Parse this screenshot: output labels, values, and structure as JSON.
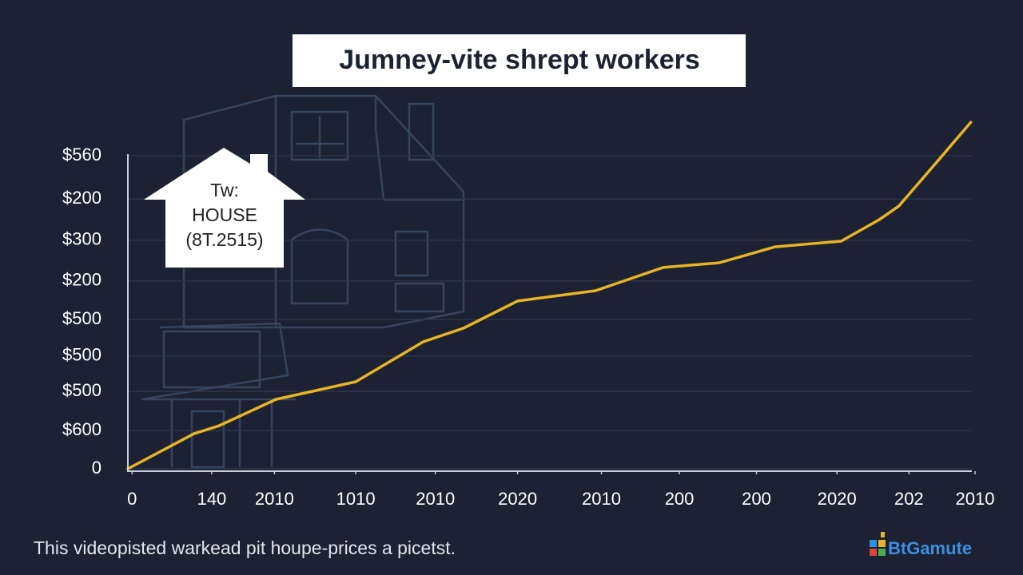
{
  "chart_data": {
    "type": "line",
    "title": "Jumney-vite shrept workers",
    "xlim": [
      0,
      100
    ],
    "ylim": [
      0,
      100
    ],
    "xticks": [
      {
        "value": 0.5,
        "label": "0"
      },
      {
        "value": 9.9,
        "label": "140"
      },
      {
        "value": 17.3,
        "label": "2010"
      },
      {
        "value": 26.9,
        "label": "1010"
      },
      {
        "value": 36.3,
        "label": "2010"
      },
      {
        "value": 46.0,
        "label": "2020"
      },
      {
        "value": 55.9,
        "label": "2010"
      },
      {
        "value": 65.1,
        "label": "200"
      },
      {
        "value": 74.2,
        "label": "200"
      },
      {
        "value": 83.7,
        "label": "2020"
      },
      {
        "value": 92.2,
        "label": "202"
      },
      {
        "value": 100,
        "label": "2010"
      }
    ],
    "yticks": [
      {
        "value": 100,
        "label": "$560"
      },
      {
        "value": 86.2,
        "label": "$200"
      },
      {
        "value": 73,
        "label": "$300"
      },
      {
        "value": 60,
        "label": "$200"
      },
      {
        "value": 47.7,
        "label": "$500"
      },
      {
        "value": 36,
        "label": "$500"
      },
      {
        "value": 24.7,
        "label": "$500"
      },
      {
        "value": 12.2,
        "label": "$600"
      },
      0
    ],
    "grid": true,
    "series": [
      {
        "color": "#e8b426",
        "x": [
          0,
          7.8,
          10.8,
          17.5,
          26.9,
          34.9,
          39.6,
          46.0,
          55.2,
          63.2,
          69.8,
          76.4,
          84.2,
          88.7,
          91.0,
          95.3,
          99.5
        ],
        "values": [
          0,
          11.2,
          13.8,
          22.2,
          27.8,
          40.6,
          44.9,
          53.6,
          56.9,
          64.3,
          65.8,
          70.9,
          72.7,
          79.6,
          83.9,
          97.4,
          110.7
        ]
      }
    ],
    "annotation": [
      "Tw:",
      "HOUSE",
      "(8T.2515)"
    ],
    "caption": "This videopisted warkead pit houpe-prices a picetst."
  },
  "footer": {
    "logo": "BtGamute"
  }
}
